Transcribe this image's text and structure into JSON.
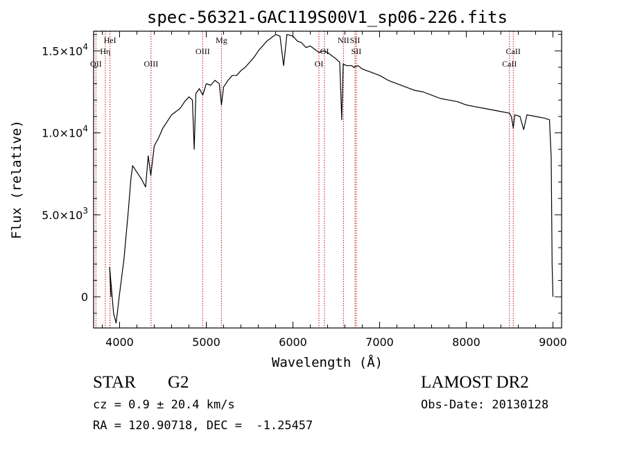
{
  "chart_data": {
    "type": "line",
    "title": "spec-56321-GAC119S00V1_sp06-226.fits",
    "xlabel": "Wavelength (Å)",
    "ylabel": "Flux (relative)",
    "xlim": [
      3700,
      9100
    ],
    "ylim": [
      -1900,
      16200
    ],
    "x_ticks": [
      4000,
      5000,
      6000,
      7000,
      8000,
      9000
    ],
    "x_tick_labels": [
      "4000",
      "5000",
      "6000",
      "7000",
      "8000",
      "9000"
    ],
    "y_ticks": [
      0,
      5000,
      10000,
      15000
    ],
    "y_tick_labels": [
      {
        "mant": "0",
        "exp": ""
      },
      {
        "mant": "5.0×10",
        "exp": "3"
      },
      {
        "mant": "1.0×10",
        "exp": "4"
      },
      {
        "mant": "1.5×10",
        "exp": "4"
      }
    ],
    "grid": false,
    "series": [
      {
        "points": [
          [
            3900,
            0
          ],
          [
            3885,
            1800
          ],
          [
            3905,
            600
          ],
          [
            3930,
            -1000
          ],
          [
            3960,
            -1600
          ],
          [
            4000,
            200
          ],
          [
            4050,
            2300
          ],
          [
            4100,
            5200
          ],
          [
            4130,
            7200
          ],
          [
            4150,
            8000
          ],
          [
            4200,
            7600
          ],
          [
            4250,
            7200
          ],
          [
            4300,
            6700
          ],
          [
            4330,
            8600
          ],
          [
            4360,
            7400
          ],
          [
            4400,
            9200
          ],
          [
            4450,
            9700
          ],
          [
            4500,
            10300
          ],
          [
            4550,
            10700
          ],
          [
            4600,
            11100
          ],
          [
            4650,
            11300
          ],
          [
            4700,
            11500
          ],
          [
            4750,
            11900
          ],
          [
            4800,
            12200
          ],
          [
            4840,
            12000
          ],
          [
            4861,
            9000
          ],
          [
            4880,
            12400
          ],
          [
            4920,
            12700
          ],
          [
            4960,
            12300
          ],
          [
            5000,
            13000
          ],
          [
            5050,
            12900
          ],
          [
            5100,
            13200
          ],
          [
            5150,
            13000
          ],
          [
            5175,
            11700
          ],
          [
            5200,
            12800
          ],
          [
            5250,
            13200
          ],
          [
            5300,
            13500
          ],
          [
            5350,
            13500
          ],
          [
            5400,
            13800
          ],
          [
            5450,
            14000
          ],
          [
            5500,
            14300
          ],
          [
            5550,
            14600
          ],
          [
            5600,
            15000
          ],
          [
            5650,
            15300
          ],
          [
            5700,
            15600
          ],
          [
            5750,
            15800
          ],
          [
            5800,
            16000
          ],
          [
            5850,
            15900
          ],
          [
            5893,
            14100
          ],
          [
            5930,
            16000
          ],
          [
            6000,
            15900
          ],
          [
            6050,
            15600
          ],
          [
            6100,
            15500
          ],
          [
            6150,
            15200
          ],
          [
            6200,
            15300
          ],
          [
            6250,
            15100
          ],
          [
            6300,
            14900
          ],
          [
            6350,
            15000
          ],
          [
            6400,
            14900
          ],
          [
            6450,
            14700
          ],
          [
            6500,
            14500
          ],
          [
            6540,
            14300
          ],
          [
            6563,
            10800
          ],
          [
            6580,
            14200
          ],
          [
            6620,
            14100
          ],
          [
            6680,
            14100
          ],
          [
            6700,
            14000
          ],
          [
            6750,
            14100
          ],
          [
            6800,
            13900
          ],
          [
            6850,
            13800
          ],
          [
            6900,
            13700
          ],
          [
            7000,
            13500
          ],
          [
            7100,
            13200
          ],
          [
            7200,
            13000
          ],
          [
            7300,
            12800
          ],
          [
            7400,
            12600
          ],
          [
            7500,
            12500
          ],
          [
            7600,
            12300
          ],
          [
            7700,
            12100
          ],
          [
            7800,
            12000
          ],
          [
            7900,
            11900
          ],
          [
            8000,
            11700
          ],
          [
            8100,
            11600
          ],
          [
            8200,
            11500
          ],
          [
            8300,
            11400
          ],
          [
            8400,
            11300
          ],
          [
            8498,
            11200
          ],
          [
            8520,
            11000
          ],
          [
            8542,
            10300
          ],
          [
            8560,
            11100
          ],
          [
            8620,
            11000
          ],
          [
            8662,
            10200
          ],
          [
            8700,
            11100
          ],
          [
            8800,
            11000
          ],
          [
            8900,
            10900
          ],
          [
            8960,
            10800
          ],
          [
            8980,
            8500
          ],
          [
            8990,
            2000
          ],
          [
            9000,
            0
          ]
        ]
      }
    ],
    "line_markers": [
      {
        "label": "OII",
        "wavelength": 3727,
        "row": "lower"
      },
      {
        "label": "Hη",
        "wavelength": 3835,
        "row": "middle"
      },
      {
        "label": "HeI",
        "wavelength": 3889,
        "row": "upper"
      },
      {
        "label": "OIII",
        "wavelength": 4363,
        "row": "lower"
      },
      {
        "label": "OIII",
        "wavelength": 4959,
        "row": "middle"
      },
      {
        "label": "Mg",
        "wavelength": 5175,
        "row": "upper"
      },
      {
        "label": "OI",
        "wavelength": 6300,
        "row": "lower"
      },
      {
        "label": "OI",
        "wavelength": 6364,
        "row": "middle"
      },
      {
        "label": "NII",
        "wavelength": 6583,
        "row": "upper"
      },
      {
        "label": "SII",
        "wavelength": 6716,
        "row": "upper"
      },
      {
        "label": "SII",
        "wavelength": 6731,
        "row": "middle"
      },
      {
        "label": "CaII",
        "wavelength": 8498,
        "row": "lower"
      },
      {
        "label": "CaII",
        "wavelength": 8542,
        "row": "middle"
      }
    ],
    "colors": {
      "spectrum": "#000000",
      "marker": "#cc0000"
    }
  },
  "info": {
    "class_label": "STAR",
    "subclass": "G2",
    "survey": "LAMOST DR2",
    "cz": "cz = 0.9 ± 20.4 km/s",
    "obs_date": "Obs-Date: 20130128",
    "coords": "RA = 120.90718, DEC =  -1.25457"
  }
}
